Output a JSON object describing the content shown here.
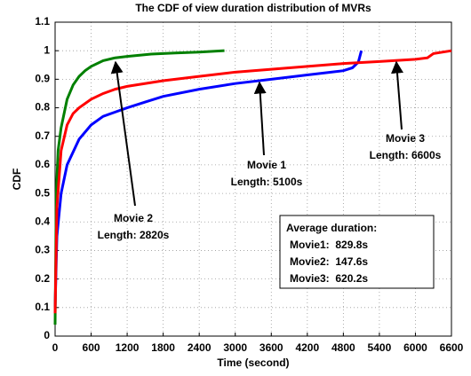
{
  "chart_data": {
    "type": "line",
    "title": "The CDF of view duration distribution of MVRs",
    "x_label": "Time (second)",
    "y_label": "CDF",
    "xlim": [
      0,
      6600
    ],
    "xticks": [
      0,
      600,
      1200,
      1800,
      2400,
      3000,
      3600,
      4200,
      4800,
      5400,
      6000,
      6600
    ],
    "ylim": [
      0,
      1.1
    ],
    "yticks": [
      0,
      0.1,
      0.2,
      0.3,
      0.4,
      0.5,
      0.6,
      0.7,
      0.8,
      0.9,
      1,
      1.1
    ],
    "grid": true,
    "series": [
      {
        "name": "Movie 1",
        "color": "#0000ff",
        "x": [
          0,
          30,
          100,
          200,
          400,
          600,
          800,
          1000,
          1200,
          1500,
          1800,
          2400,
          3000,
          3600,
          4200,
          4800,
          4950,
          5050,
          5100
        ],
        "values": [
          0.1,
          0.35,
          0.5,
          0.6,
          0.69,
          0.74,
          0.77,
          0.785,
          0.8,
          0.82,
          0.84,
          0.865,
          0.885,
          0.9,
          0.915,
          0.93,
          0.94,
          0.96,
          1.0
        ]
      },
      {
        "name": "Movie 2",
        "color": "#008000",
        "x": [
          0,
          20,
          50,
          100,
          200,
          300,
          400,
          500,
          600,
          800,
          1000,
          1200,
          1600,
          2000,
          2400,
          2820
        ],
        "values": [
          0.04,
          0.5,
          0.65,
          0.73,
          0.83,
          0.88,
          0.91,
          0.93,
          0.945,
          0.965,
          0.975,
          0.98,
          0.988,
          0.992,
          0.995,
          1.0
        ]
      },
      {
        "name": "Movie 3",
        "color": "#ff0000",
        "x": [
          0,
          30,
          100,
          200,
          300,
          400,
          600,
          800,
          1000,
          1200,
          1800,
          2400,
          3000,
          3600,
          4200,
          4800,
          5400,
          6000,
          6200,
          6300,
          6600
        ],
        "values": [
          0.08,
          0.45,
          0.65,
          0.74,
          0.78,
          0.8,
          0.83,
          0.85,
          0.865,
          0.875,
          0.895,
          0.91,
          0.925,
          0.935,
          0.945,
          0.955,
          0.962,
          0.97,
          0.975,
          0.99,
          1.0
        ]
      }
    ],
    "annotations": [
      [
        "Movie 2",
        "Length: 2820s"
      ],
      [
        "Movie 1",
        "Length: 5100s"
      ],
      [
        "Movie 3",
        "Length: 6600s"
      ]
    ],
    "summary": [
      "Average duration:",
      "Movie1:  829.8s",
      "Movie2:  147.6s",
      "Movie3:  620.2s"
    ]
  }
}
